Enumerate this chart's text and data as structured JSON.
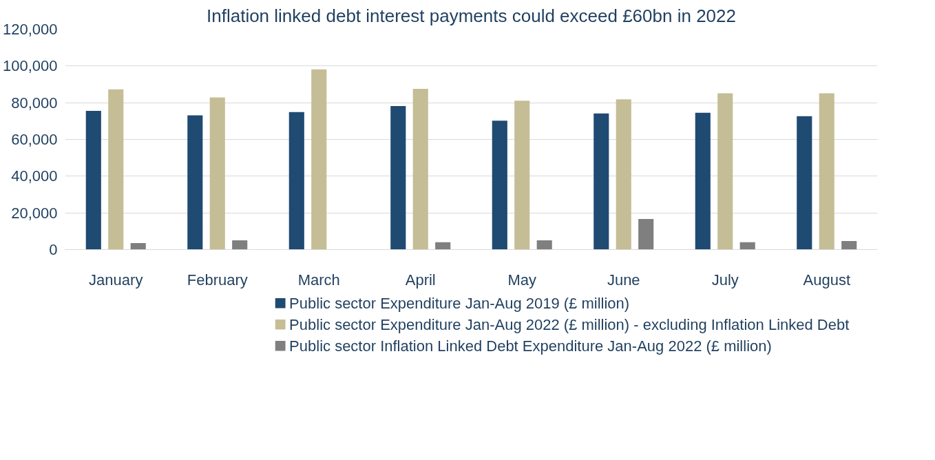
{
  "chart_data": {
    "type": "bar",
    "title": "Inflation linked debt interest payments could exceed £60bn in 2022",
    "categories": [
      "January",
      "February",
      "March",
      "April",
      "May",
      "June",
      "July",
      "August"
    ],
    "series": [
      {
        "name": "Public sector Expenditure Jan-Aug 2019 (£ million)",
        "color": "#1f4a72",
        "values": [
          75600,
          73100,
          74900,
          78200,
          70200,
          74200,
          74500,
          72700
        ]
      },
      {
        "name": "Public sector Expenditure Jan-Aug 2022 (£ million) - excluding Inflation Linked Debt",
        "color": "#c5bd96",
        "values": [
          87300,
          82900,
          98200,
          87600,
          81100,
          81800,
          85100,
          85100
        ]
      },
      {
        "name": "Public sector Inflation Linked Debt Expenditure Jan-Aug 2022 (£ million)",
        "color": "#7f7f7f",
        "values": [
          3600,
          5100,
          0,
          4000,
          5100,
          16700,
          4000,
          4700
        ]
      }
    ],
    "ylim": [
      0,
      120000
    ],
    "yticks": [
      {
        "value": 0,
        "label": "0"
      },
      {
        "value": 20000,
        "label": "20,000"
      },
      {
        "value": 40000,
        "label": "40,000"
      },
      {
        "value": 60000,
        "label": "60,000"
      },
      {
        "value": 80000,
        "label": "80,000"
      },
      {
        "value": 100000,
        "label": "100,000"
      },
      {
        "value": 120000,
        "label": "120,000"
      }
    ],
    "grid": "y",
    "legend": "bottom"
  }
}
